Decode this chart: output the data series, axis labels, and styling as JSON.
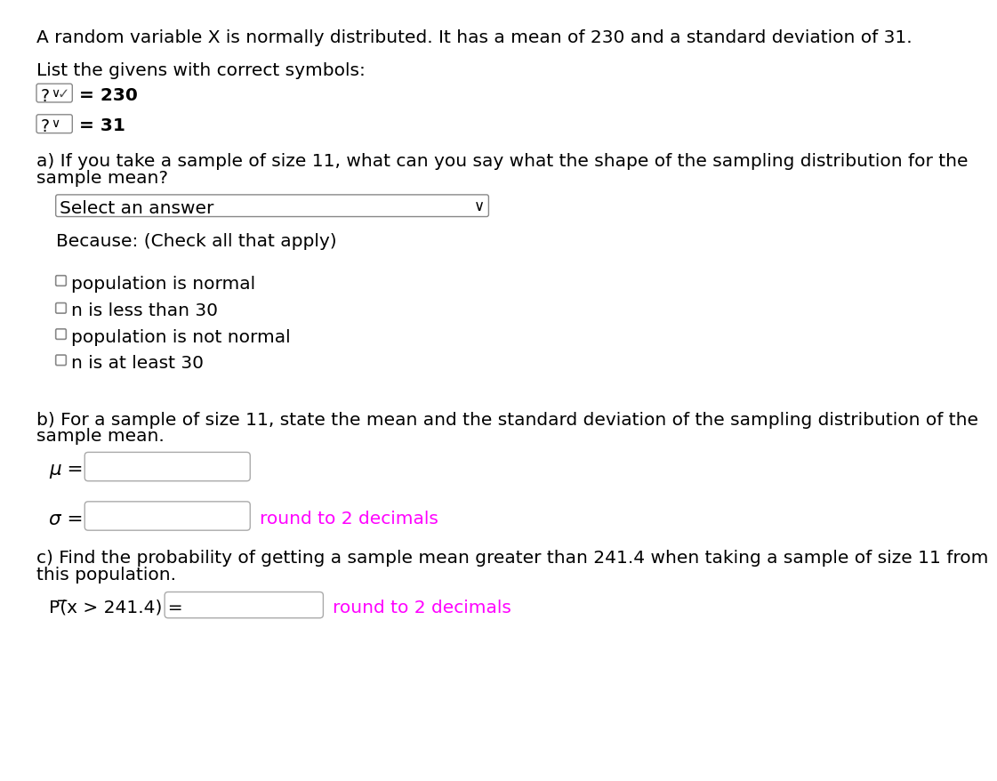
{
  "title_line": "A random variable X is normally distributed. It has a mean of 230 and a standard deviation of 31.",
  "line2": "List the givens with correct symbols:",
  "value1": "= 230",
  "value2": "= 31",
  "part_a_text1": "a) If you take a sample of size 11, what can you say what the shape of the sampling distribution for the",
  "part_a_text2": "sample mean?",
  "select_answer_text": "Select an answer",
  "because_text": "Because: (Check all that apply)",
  "checkbox_options": [
    "population is normal",
    "n is less than 30",
    "population is not normal",
    "n is at least 30"
  ],
  "part_b_text1": "b) For a sample of size 11, state the mean and the standard deviation of the sampling distribution of the",
  "part_b_text2": "sample mean.",
  "mu_label": "μ =",
  "sigma_label": "σ =",
  "round_note": "round to 2 decimals",
  "part_c_text1": "c) Find the probability of getting a sample mean greater than 241.4 when taking a sample of size 11 from",
  "part_c_text2": "this population.",
  "prob_label": "P(̅x > 241.4) =",
  "round_note2": "round to 2 decimals",
  "bg_color": "#ffffff",
  "text_color": "#000000",
  "magenta_color": "#ff00ff",
  "box_edge_color": "#aaaaaa",
  "dropdown_edge_color": "#888888",
  "font_size_main": 14.5,
  "font_size_greek": 15.5
}
